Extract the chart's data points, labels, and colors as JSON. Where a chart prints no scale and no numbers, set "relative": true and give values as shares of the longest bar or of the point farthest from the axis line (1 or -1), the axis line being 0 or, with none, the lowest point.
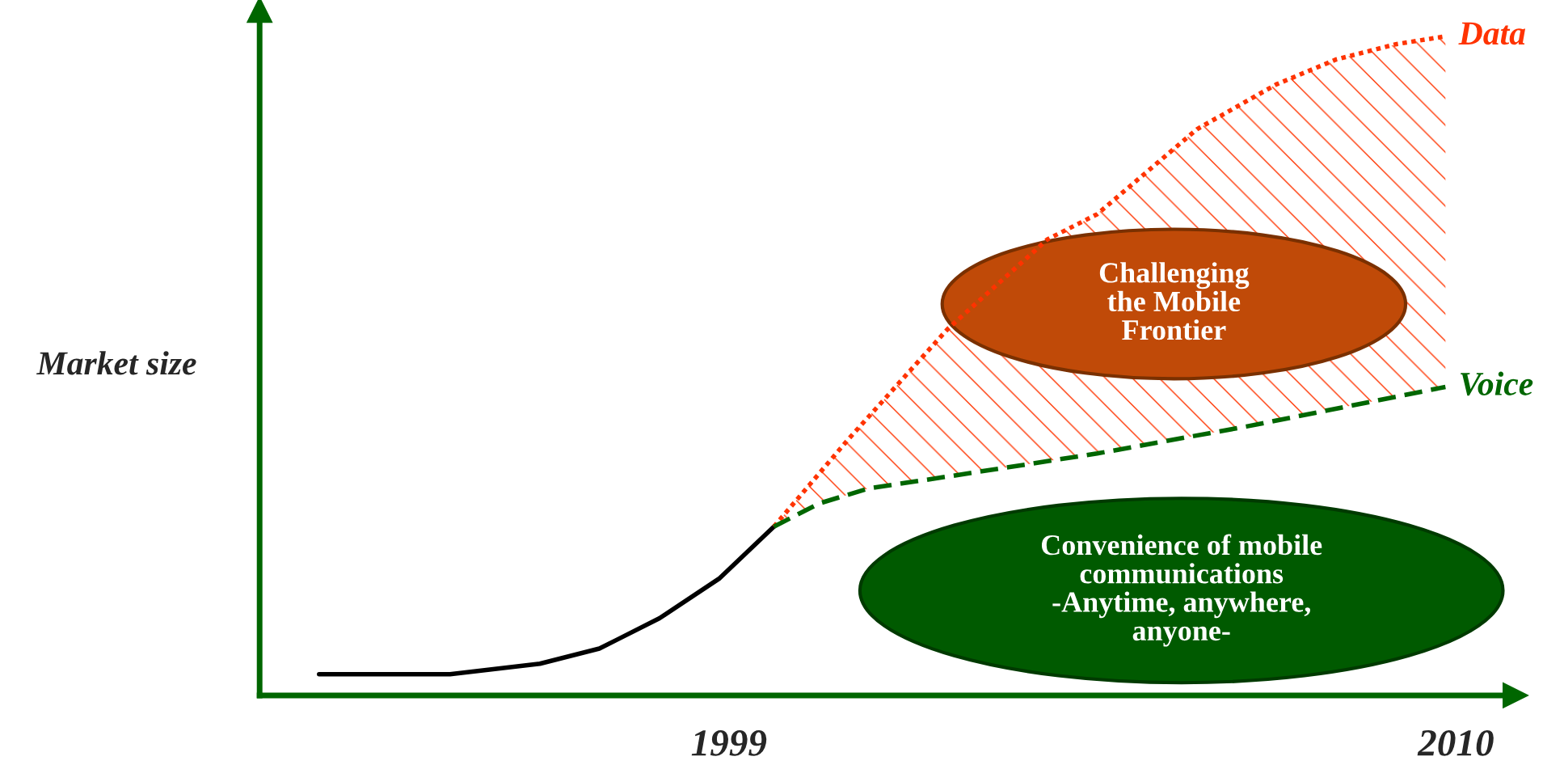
{
  "chart_data": {
    "type": "line",
    "relative": true,
    "ylabel": "Market size",
    "xlim": [
      1991.9,
      2010.9
    ],
    "xticks": [
      1999,
      2010
    ],
    "series": [
      {
        "color": "#000000",
        "line_style": "solid",
        "x": [
          1992.8,
          1994.78,
          1996.14,
          1997.04,
          1997.95,
          1998.85,
          1999.68
        ],
        "values": [
          0.032,
          0.032,
          0.048,
          0.071,
          0.117,
          0.177,
          0.256
        ]
      },
      {
        "name": "Data",
        "color": "#ff3300",
        "line_style": "dotted",
        "x": [
          1999.68,
          2000.81,
          2002.31,
          2003.82,
          2004.57,
          2006.08,
          2007.28,
          2008.19,
          2009.09,
          2009.84
        ],
        "values": [
          0.256,
          0.389,
          0.556,
          0.692,
          0.73,
          0.859,
          0.927,
          0.965,
          0.988,
          1.0
        ]
      },
      {
        "name": "Voice",
        "color": "#006600",
        "line_style": "dashed",
        "x": [
          1999.68,
          2000.36,
          2001.11,
          2002.31,
          2004.57,
          2006.83,
          2009.84
        ],
        "values": [
          0.256,
          0.291,
          0.314,
          0.332,
          0.367,
          0.408,
          0.468
        ]
      }
    ],
    "annotations": [
      "Challenging\nthe Mobile\nFrontier",
      "Convenience of mobile\ncommunications\n-Anytime, anywhere,\nanyone-"
    ]
  }
}
